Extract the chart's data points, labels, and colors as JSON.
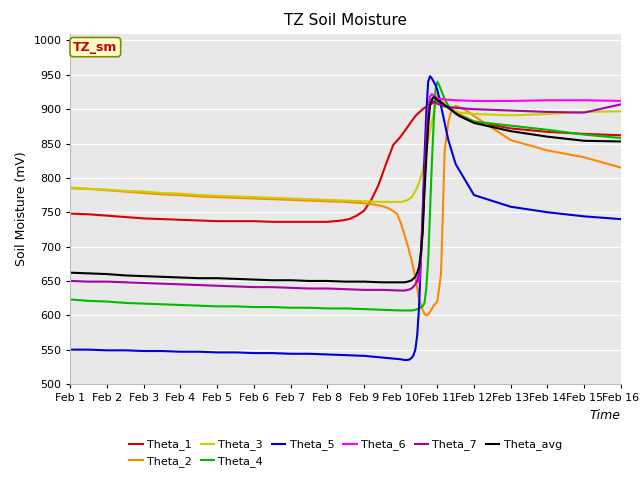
{
  "title": "TZ Soil Moisture",
  "xlabel": "Time",
  "ylabel": "Soil Moisture (mV)",
  "ylim": [
    500,
    1010
  ],
  "yticks": [
    500,
    550,
    600,
    650,
    700,
    750,
    800,
    850,
    900,
    950,
    1000
  ],
  "x_labels": [
    "Feb 1",
    "Feb 2",
    "Feb 3",
    "Feb 4",
    "Feb 5",
    "Feb 6",
    "Feb 7",
    "Feb 8",
    "Feb 9",
    "Feb 10",
    "Feb 11",
    "Feb 12",
    "Feb 13",
    "Feb 14",
    "Feb 15",
    "Feb 16"
  ],
  "legend_label": "TZ_sm",
  "bg_color": "#e8e8e8",
  "series": {
    "Theta_1": {
      "color": "#dd0000",
      "points": [
        [
          0,
          748
        ],
        [
          0.5,
          747
        ],
        [
          1,
          745
        ],
        [
          1.5,
          743
        ],
        [
          2,
          741
        ],
        [
          2.5,
          740
        ],
        [
          3,
          739
        ],
        [
          3.5,
          738
        ],
        [
          4,
          737
        ],
        [
          4.5,
          737
        ],
        [
          5,
          737
        ],
        [
          5.5,
          736
        ],
        [
          6,
          736
        ],
        [
          6.5,
          736
        ],
        [
          7,
          736
        ],
        [
          7.2,
          737
        ],
        [
          7.4,
          738
        ],
        [
          7.6,
          740
        ],
        [
          7.8,
          745
        ],
        [
          8,
          752
        ],
        [
          8.2,
          768
        ],
        [
          8.4,
          790
        ],
        [
          8.6,
          820
        ],
        [
          8.8,
          848
        ],
        [
          9,
          860
        ],
        [
          9.2,
          875
        ],
        [
          9.4,
          890
        ],
        [
          9.6,
          900
        ],
        [
          9.8,
          907
        ],
        [
          10,
          912
        ],
        [
          10.1,
          910
        ],
        [
          10.2,
          906
        ],
        [
          10.4,
          898
        ],
        [
          10.6,
          892
        ],
        [
          11,
          882
        ],
        [
          12,
          872
        ],
        [
          13,
          867
        ],
        [
          14,
          864
        ],
        [
          15,
          862
        ]
      ]
    },
    "Theta_2": {
      "color": "#ff8800",
      "points": [
        [
          0,
          785
        ],
        [
          0.5,
          784
        ],
        [
          1,
          782
        ],
        [
          1.5,
          780
        ],
        [
          2,
          778
        ],
        [
          2.5,
          776
        ],
        [
          3,
          775
        ],
        [
          3.5,
          773
        ],
        [
          4,
          772
        ],
        [
          4.5,
          771
        ],
        [
          5,
          770
        ],
        [
          5.5,
          769
        ],
        [
          6,
          768
        ],
        [
          6.5,
          767
        ],
        [
          7,
          766
        ],
        [
          7.5,
          765
        ],
        [
          8,
          763
        ],
        [
          8.3,
          761
        ],
        [
          8.5,
          759
        ],
        [
          8.7,
          755
        ],
        [
          8.9,
          748
        ],
        [
          9,
          735
        ],
        [
          9.1,
          718
        ],
        [
          9.2,
          700
        ],
        [
          9.3,
          680
        ],
        [
          9.4,
          655
        ],
        [
          9.5,
          625
        ],
        [
          9.6,
          608
        ],
        [
          9.65,
          602
        ],
        [
          9.7,
          600
        ],
        [
          9.75,
          601
        ],
        [
          9.8,
          605
        ],
        [
          9.9,
          614
        ],
        [
          10,
          620
        ],
        [
          10.1,
          660
        ],
        [
          10.2,
          840
        ],
        [
          10.3,
          882
        ],
        [
          10.4,
          900
        ],
        [
          10.5,
          905
        ],
        [
          10.6,
          903
        ],
        [
          10.8,
          898
        ],
        [
          11,
          890
        ],
        [
          12,
          855
        ],
        [
          13,
          840
        ],
        [
          14,
          830
        ],
        [
          15,
          815
        ]
      ]
    },
    "Theta_3": {
      "color": "#cccc00",
      "points": [
        [
          0,
          786
        ],
        [
          0.5,
          784
        ],
        [
          1,
          783
        ],
        [
          1.5,
          781
        ],
        [
          2,
          780
        ],
        [
          2.5,
          778
        ],
        [
          3,
          777
        ],
        [
          3.5,
          775
        ],
        [
          4,
          774
        ],
        [
          4.5,
          773
        ],
        [
          5,
          772
        ],
        [
          5.5,
          771
        ],
        [
          6,
          770
        ],
        [
          6.5,
          769
        ],
        [
          7,
          768
        ],
        [
          7.5,
          767
        ],
        [
          8,
          766
        ],
        [
          8.5,
          765
        ],
        [
          9,
          765
        ],
        [
          9.1,
          766
        ],
        [
          9.2,
          768
        ],
        [
          9.3,
          772
        ],
        [
          9.4,
          780
        ],
        [
          9.5,
          793
        ],
        [
          9.6,
          810
        ],
        [
          9.7,
          840
        ],
        [
          9.8,
          870
        ],
        [
          9.9,
          893
        ],
        [
          10,
          920
        ],
        [
          10.1,
          915
        ],
        [
          10.2,
          908
        ],
        [
          10.4,
          900
        ],
        [
          10.6,
          895
        ],
        [
          11,
          893
        ],
        [
          12,
          891
        ],
        [
          13,
          893
        ],
        [
          14,
          896
        ],
        [
          15,
          897
        ]
      ]
    },
    "Theta_4": {
      "color": "#00bb00",
      "points": [
        [
          0,
          623
        ],
        [
          0.5,
          621
        ],
        [
          1,
          620
        ],
        [
          1.5,
          618
        ],
        [
          2,
          617
        ],
        [
          2.5,
          616
        ],
        [
          3,
          615
        ],
        [
          3.5,
          614
        ],
        [
          4,
          613
        ],
        [
          4.5,
          613
        ],
        [
          5,
          612
        ],
        [
          5.5,
          612
        ],
        [
          6,
          611
        ],
        [
          6.5,
          611
        ],
        [
          7,
          610
        ],
        [
          7.5,
          610
        ],
        [
          8,
          609
        ],
        [
          8.5,
          608
        ],
        [
          9,
          607
        ],
        [
          9.1,
          607
        ],
        [
          9.2,
          607
        ],
        [
          9.3,
          607
        ],
        [
          9.4,
          608
        ],
        [
          9.5,
          610
        ],
        [
          9.6,
          613
        ],
        [
          9.65,
          618
        ],
        [
          9.7,
          640
        ],
        [
          9.75,
          680
        ],
        [
          9.8,
          750
        ],
        [
          9.85,
          820
        ],
        [
          9.9,
          880
        ],
        [
          9.95,
          928
        ],
        [
          10,
          940
        ],
        [
          10.05,
          935
        ],
        [
          10.1,
          928
        ],
        [
          10.2,
          915
        ],
        [
          10.3,
          905
        ],
        [
          10.5,
          893
        ],
        [
          11,
          882
        ],
        [
          12,
          876
        ],
        [
          13,
          870
        ],
        [
          14,
          863
        ],
        [
          15,
          858
        ]
      ]
    },
    "Theta_5": {
      "color": "#0000dd",
      "points": [
        [
          0,
          550
        ],
        [
          0.5,
          550
        ],
        [
          1,
          549
        ],
        [
          1.5,
          549
        ],
        [
          2,
          548
        ],
        [
          2.5,
          548
        ],
        [
          3,
          547
        ],
        [
          3.5,
          547
        ],
        [
          4,
          546
        ],
        [
          4.5,
          546
        ],
        [
          5,
          545
        ],
        [
          5.5,
          545
        ],
        [
          6,
          544
        ],
        [
          6.5,
          544
        ],
        [
          7,
          543
        ],
        [
          7.5,
          542
        ],
        [
          8,
          541
        ],
        [
          8.2,
          540
        ],
        [
          8.4,
          539
        ],
        [
          8.6,
          538
        ],
        [
          8.8,
          537
        ],
        [
          9,
          536
        ],
        [
          9.1,
          535
        ],
        [
          9.2,
          535
        ],
        [
          9.25,
          536
        ],
        [
          9.3,
          538
        ],
        [
          9.35,
          542
        ],
        [
          9.4,
          550
        ],
        [
          9.45,
          570
        ],
        [
          9.5,
          610
        ],
        [
          9.55,
          680
        ],
        [
          9.6,
          750
        ],
        [
          9.65,
          830
        ],
        [
          9.7,
          895
        ],
        [
          9.75,
          940
        ],
        [
          9.8,
          948
        ],
        [
          9.85,
          945
        ],
        [
          9.9,
          940
        ],
        [
          9.95,
          935
        ],
        [
          10,
          928
        ],
        [
          10.1,
          905
        ],
        [
          10.2,
          880
        ],
        [
          10.3,
          855
        ],
        [
          10.5,
          820
        ],
        [
          11,
          775
        ],
        [
          12,
          758
        ],
        [
          13,
          750
        ],
        [
          14,
          744
        ],
        [
          15,
          740
        ]
      ]
    },
    "Theta_6": {
      "color": "#ff00ff",
      "points": [
        [
          9.5,
          648
        ],
        [
          9.55,
          680
        ],
        [
          9.6,
          730
        ],
        [
          9.65,
          800
        ],
        [
          9.7,
          860
        ],
        [
          9.75,
          900
        ],
        [
          9.8,
          918
        ],
        [
          9.85,
          922
        ],
        [
          9.9,
          920
        ],
        [
          9.95,
          917
        ],
        [
          10,
          916
        ],
        [
          10.1,
          915
        ],
        [
          10.2,
          914
        ],
        [
          10.5,
          913
        ],
        [
          11,
          912
        ],
        [
          12,
          912
        ],
        [
          13,
          913
        ],
        [
          14,
          913
        ],
        [
          15,
          912
        ]
      ]
    },
    "Theta_7": {
      "color": "#aa00aa",
      "points": [
        [
          0,
          650
        ],
        [
          0.5,
          649
        ],
        [
          1,
          649
        ],
        [
          1.5,
          648
        ],
        [
          2,
          647
        ],
        [
          2.5,
          646
        ],
        [
          3,
          645
        ],
        [
          3.5,
          644
        ],
        [
          4,
          643
        ],
        [
          4.5,
          642
        ],
        [
          5,
          641
        ],
        [
          5.5,
          641
        ],
        [
          6,
          640
        ],
        [
          6.5,
          639
        ],
        [
          7,
          639
        ],
        [
          7.5,
          638
        ],
        [
          8,
          637
        ],
        [
          8.5,
          637
        ],
        [
          9,
          636
        ],
        [
          9.1,
          636
        ],
        [
          9.2,
          637
        ],
        [
          9.3,
          639
        ],
        [
          9.4,
          645
        ],
        [
          9.45,
          650
        ],
        [
          9.5,
          660
        ],
        [
          9.55,
          690
        ],
        [
          9.6,
          730
        ],
        [
          9.65,
          800
        ],
        [
          9.7,
          855
        ],
        [
          9.75,
          890
        ],
        [
          9.8,
          908
        ],
        [
          9.85,
          912
        ],
        [
          9.9,
          911
        ],
        [
          9.95,
          910
        ],
        [
          10,
          908
        ],
        [
          10.1,
          906
        ],
        [
          10.2,
          904
        ],
        [
          10.5,
          902
        ],
        [
          11,
          900
        ],
        [
          12,
          898
        ],
        [
          13,
          896
        ],
        [
          14,
          895
        ],
        [
          15,
          907
        ]
      ]
    },
    "Theta_avg": {
      "color": "#000000",
      "points": [
        [
          0,
          662
        ],
        [
          0.5,
          661
        ],
        [
          1,
          660
        ],
        [
          1.5,
          658
        ],
        [
          2,
          657
        ],
        [
          2.5,
          656
        ],
        [
          3,
          655
        ],
        [
          3.5,
          654
        ],
        [
          4,
          654
        ],
        [
          4.5,
          653
        ],
        [
          5,
          652
        ],
        [
          5.5,
          651
        ],
        [
          6,
          651
        ],
        [
          6.5,
          650
        ],
        [
          7,
          650
        ],
        [
          7.5,
          649
        ],
        [
          8,
          649
        ],
        [
          8.5,
          648
        ],
        [
          9,
          648
        ],
        [
          9.1,
          648
        ],
        [
          9.2,
          649
        ],
        [
          9.3,
          651
        ],
        [
          9.4,
          656
        ],
        [
          9.45,
          662
        ],
        [
          9.5,
          670
        ],
        [
          9.55,
          690
        ],
        [
          9.6,
          720
        ],
        [
          9.65,
          780
        ],
        [
          9.7,
          830
        ],
        [
          9.75,
          875
        ],
        [
          9.8,
          905
        ],
        [
          9.85,
          914
        ],
        [
          9.9,
          918
        ],
        [
          9.95,
          916
        ],
        [
          10,
          913
        ],
        [
          10.1,
          910
        ],
        [
          10.2,
          906
        ],
        [
          10.4,
          898
        ],
        [
          10.6,
          890
        ],
        [
          11,
          880
        ],
        [
          12,
          868
        ],
        [
          13,
          860
        ],
        [
          14,
          854
        ],
        [
          15,
          853
        ]
      ]
    }
  },
  "legend_order": [
    "Theta_1",
    "Theta_2",
    "Theta_3",
    "Theta_4",
    "Theta_5",
    "Theta_6",
    "Theta_7",
    "Theta_avg"
  ]
}
